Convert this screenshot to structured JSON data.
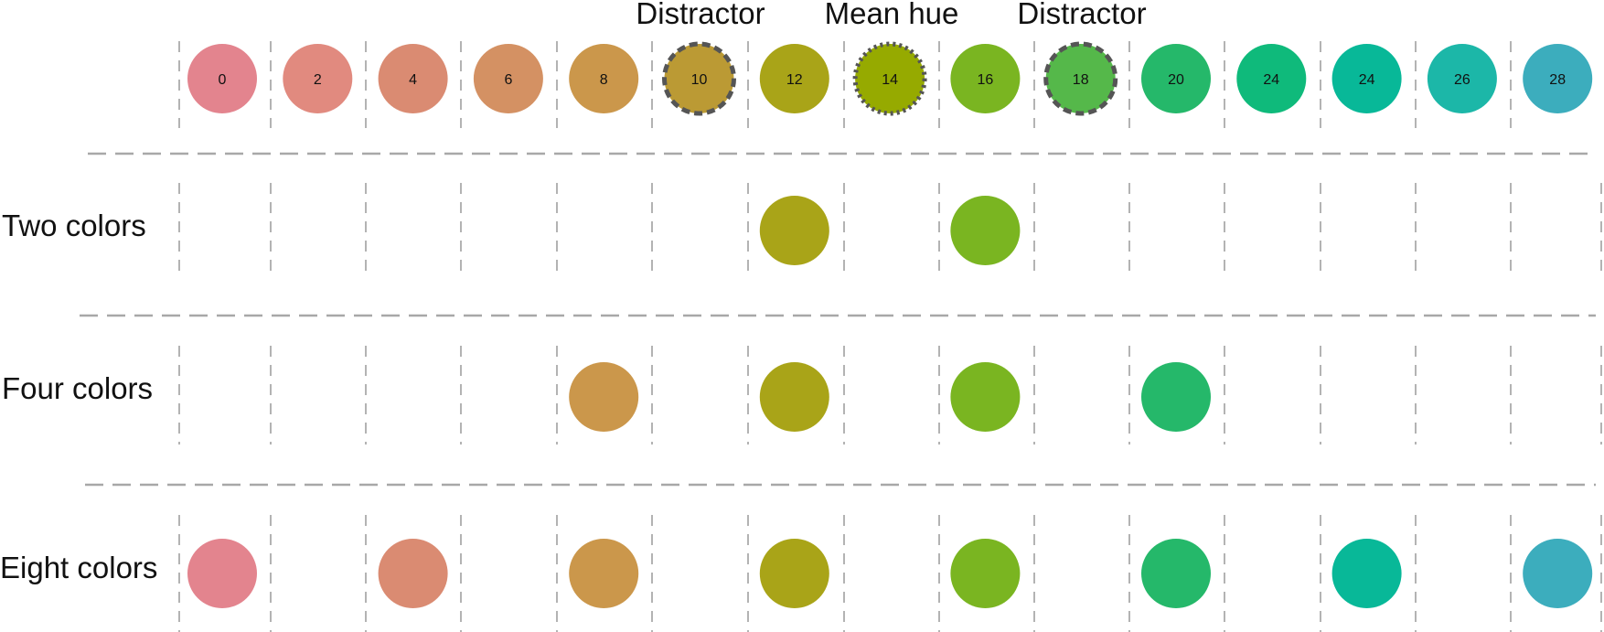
{
  "headers": {
    "left": "Distractor",
    "center": "Mean hue",
    "right": "Distractor"
  },
  "palette": [
    {
      "label": "0",
      "color": "#e3848e"
    },
    {
      "label": "2",
      "color": "#e18a7f"
    },
    {
      "label": "4",
      "color": "#da8b72"
    },
    {
      "label": "6",
      "color": "#d49163"
    },
    {
      "label": "8",
      "color": "#cb974b"
    },
    {
      "label": "10",
      "color": "#bb9a34",
      "marker": "distractor"
    },
    {
      "label": "12",
      "color": "#a9a418"
    },
    {
      "label": "14",
      "color": "#96aa00",
      "marker": "mean"
    },
    {
      "label": "16",
      "color": "#7ab521"
    },
    {
      "label": "18",
      "color": "#55b84a",
      "marker": "distractor"
    },
    {
      "label": "20",
      "color": "#25b86a"
    },
    {
      "label": "24",
      "color": "#0fba7b"
    },
    {
      "label": "24",
      "color": "#08b898"
    },
    {
      "label": "26",
      "color": "#1cb7a8"
    },
    {
      "label": "28",
      "color": "#3cadbd"
    }
  ],
  "rows": [
    {
      "label": "Two colors",
      "items": [
        6,
        8
      ]
    },
    {
      "label": "Four colors",
      "items": [
        4,
        6,
        8,
        10
      ]
    },
    {
      "label": "Eight colors",
      "items": [
        0,
        2,
        4,
        6,
        8,
        10,
        12,
        14
      ]
    }
  ]
}
